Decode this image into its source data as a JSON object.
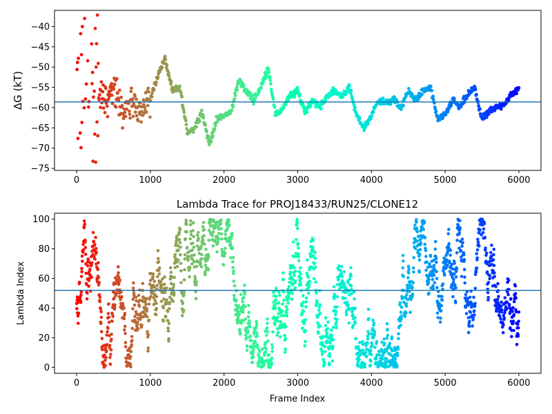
{
  "chart_data": [
    {
      "id": "dg",
      "type": "line",
      "title": "",
      "xlabel": "",
      "ylabel": "ΔG (kT)",
      "xlim": [
        -300,
        6300
      ],
      "ylim": [
        -75.5,
        -36
      ],
      "xticks": [
        0,
        1000,
        2000,
        3000,
        4000,
        5000,
        6000
      ],
      "xtick_labels": [
        "0",
        "1000",
        "2000",
        "3000",
        "4000",
        "5000",
        "6000"
      ],
      "yticks": [
        -75,
        -70,
        -65,
        -60,
        -55,
        -50,
        -45,
        -40
      ],
      "ytick_labels": [
        "−75",
        "−70",
        "−65",
        "−60",
        "−55",
        "−50",
        "−45",
        "−40"
      ],
      "hline": -58.6,
      "hline_color": "#1f77b4",
      "colormap": "rainbow (reversed over frame index: red at frame 0 → violet at frame 6000)",
      "grid": false,
      "series": [
        {
          "frames": [
            0,
            100,
            200,
            300,
            400,
            500,
            600,
            700,
            800,
            900,
            1000,
            1100,
            1200,
            1300,
            1400,
            1500,
            1600,
            1700,
            1800,
            1900,
            2000,
            2100,
            2200,
            2300,
            2400,
            2500,
            2600,
            2700,
            2800,
            2900,
            3000,
            3100,
            3200,
            3300,
            3400,
            3500,
            3600,
            3700,
            3800,
            3900,
            4000,
            4100,
            4200,
            4300,
            4400,
            4500,
            4600,
            4700,
            4800,
            4900,
            5000,
            5100,
            5200,
            5300,
            5400,
            5500,
            5600,
            5700,
            5800,
            5900,
            6000
          ],
          "values": [
            -52,
            -50,
            -61,
            -57,
            -58,
            -55,
            -61,
            -60,
            -59,
            -60,
            -58,
            -52,
            -48,
            -56,
            -55,
            -66,
            -65,
            -61,
            -69,
            -63,
            -62,
            -61,
            -53,
            -56,
            -58,
            -55,
            -50,
            -62,
            -60,
            -57,
            -56,
            -61,
            -58,
            -60,
            -57,
            -56,
            -57,
            -55,
            -62,
            -65,
            -62,
            -58,
            -59,
            -58,
            -60,
            -56,
            -58,
            -56,
            -55,
            -63,
            -62,
            -58,
            -60,
            -57,
            -55,
            -63,
            -61,
            -60,
            -59,
            -57,
            -55
          ]
        }
      ],
      "early_scatter_range": [
        -74,
        -37
      ]
    },
    {
      "id": "lambda",
      "type": "scatter",
      "title": "Lambda Trace for PROJ18433/RUN25/CLONE12",
      "xlabel": "Frame Index",
      "ylabel": "Lambda Index",
      "xlim": [
        -300,
        6300
      ],
      "ylim": [
        -4,
        104
      ],
      "xticks": [
        0,
        1000,
        2000,
        3000,
        4000,
        5000,
        6000
      ],
      "xtick_labels": [
        "0",
        "1000",
        "2000",
        "3000",
        "4000",
        "5000",
        "6000"
      ],
      "yticks": [
        0,
        20,
        40,
        60,
        80,
        100
      ],
      "ytick_labels": [
        "0",
        "20",
        "40",
        "60",
        "80",
        "100"
      ],
      "hline": 52,
      "hline_color": "#1f77b4",
      "colormap": "rainbow (reversed over frame index: red at frame 0 → violet at frame 6000)",
      "grid": false,
      "value_range": [
        0,
        100
      ],
      "frame_range": [
        0,
        6000
      ]
    }
  ]
}
